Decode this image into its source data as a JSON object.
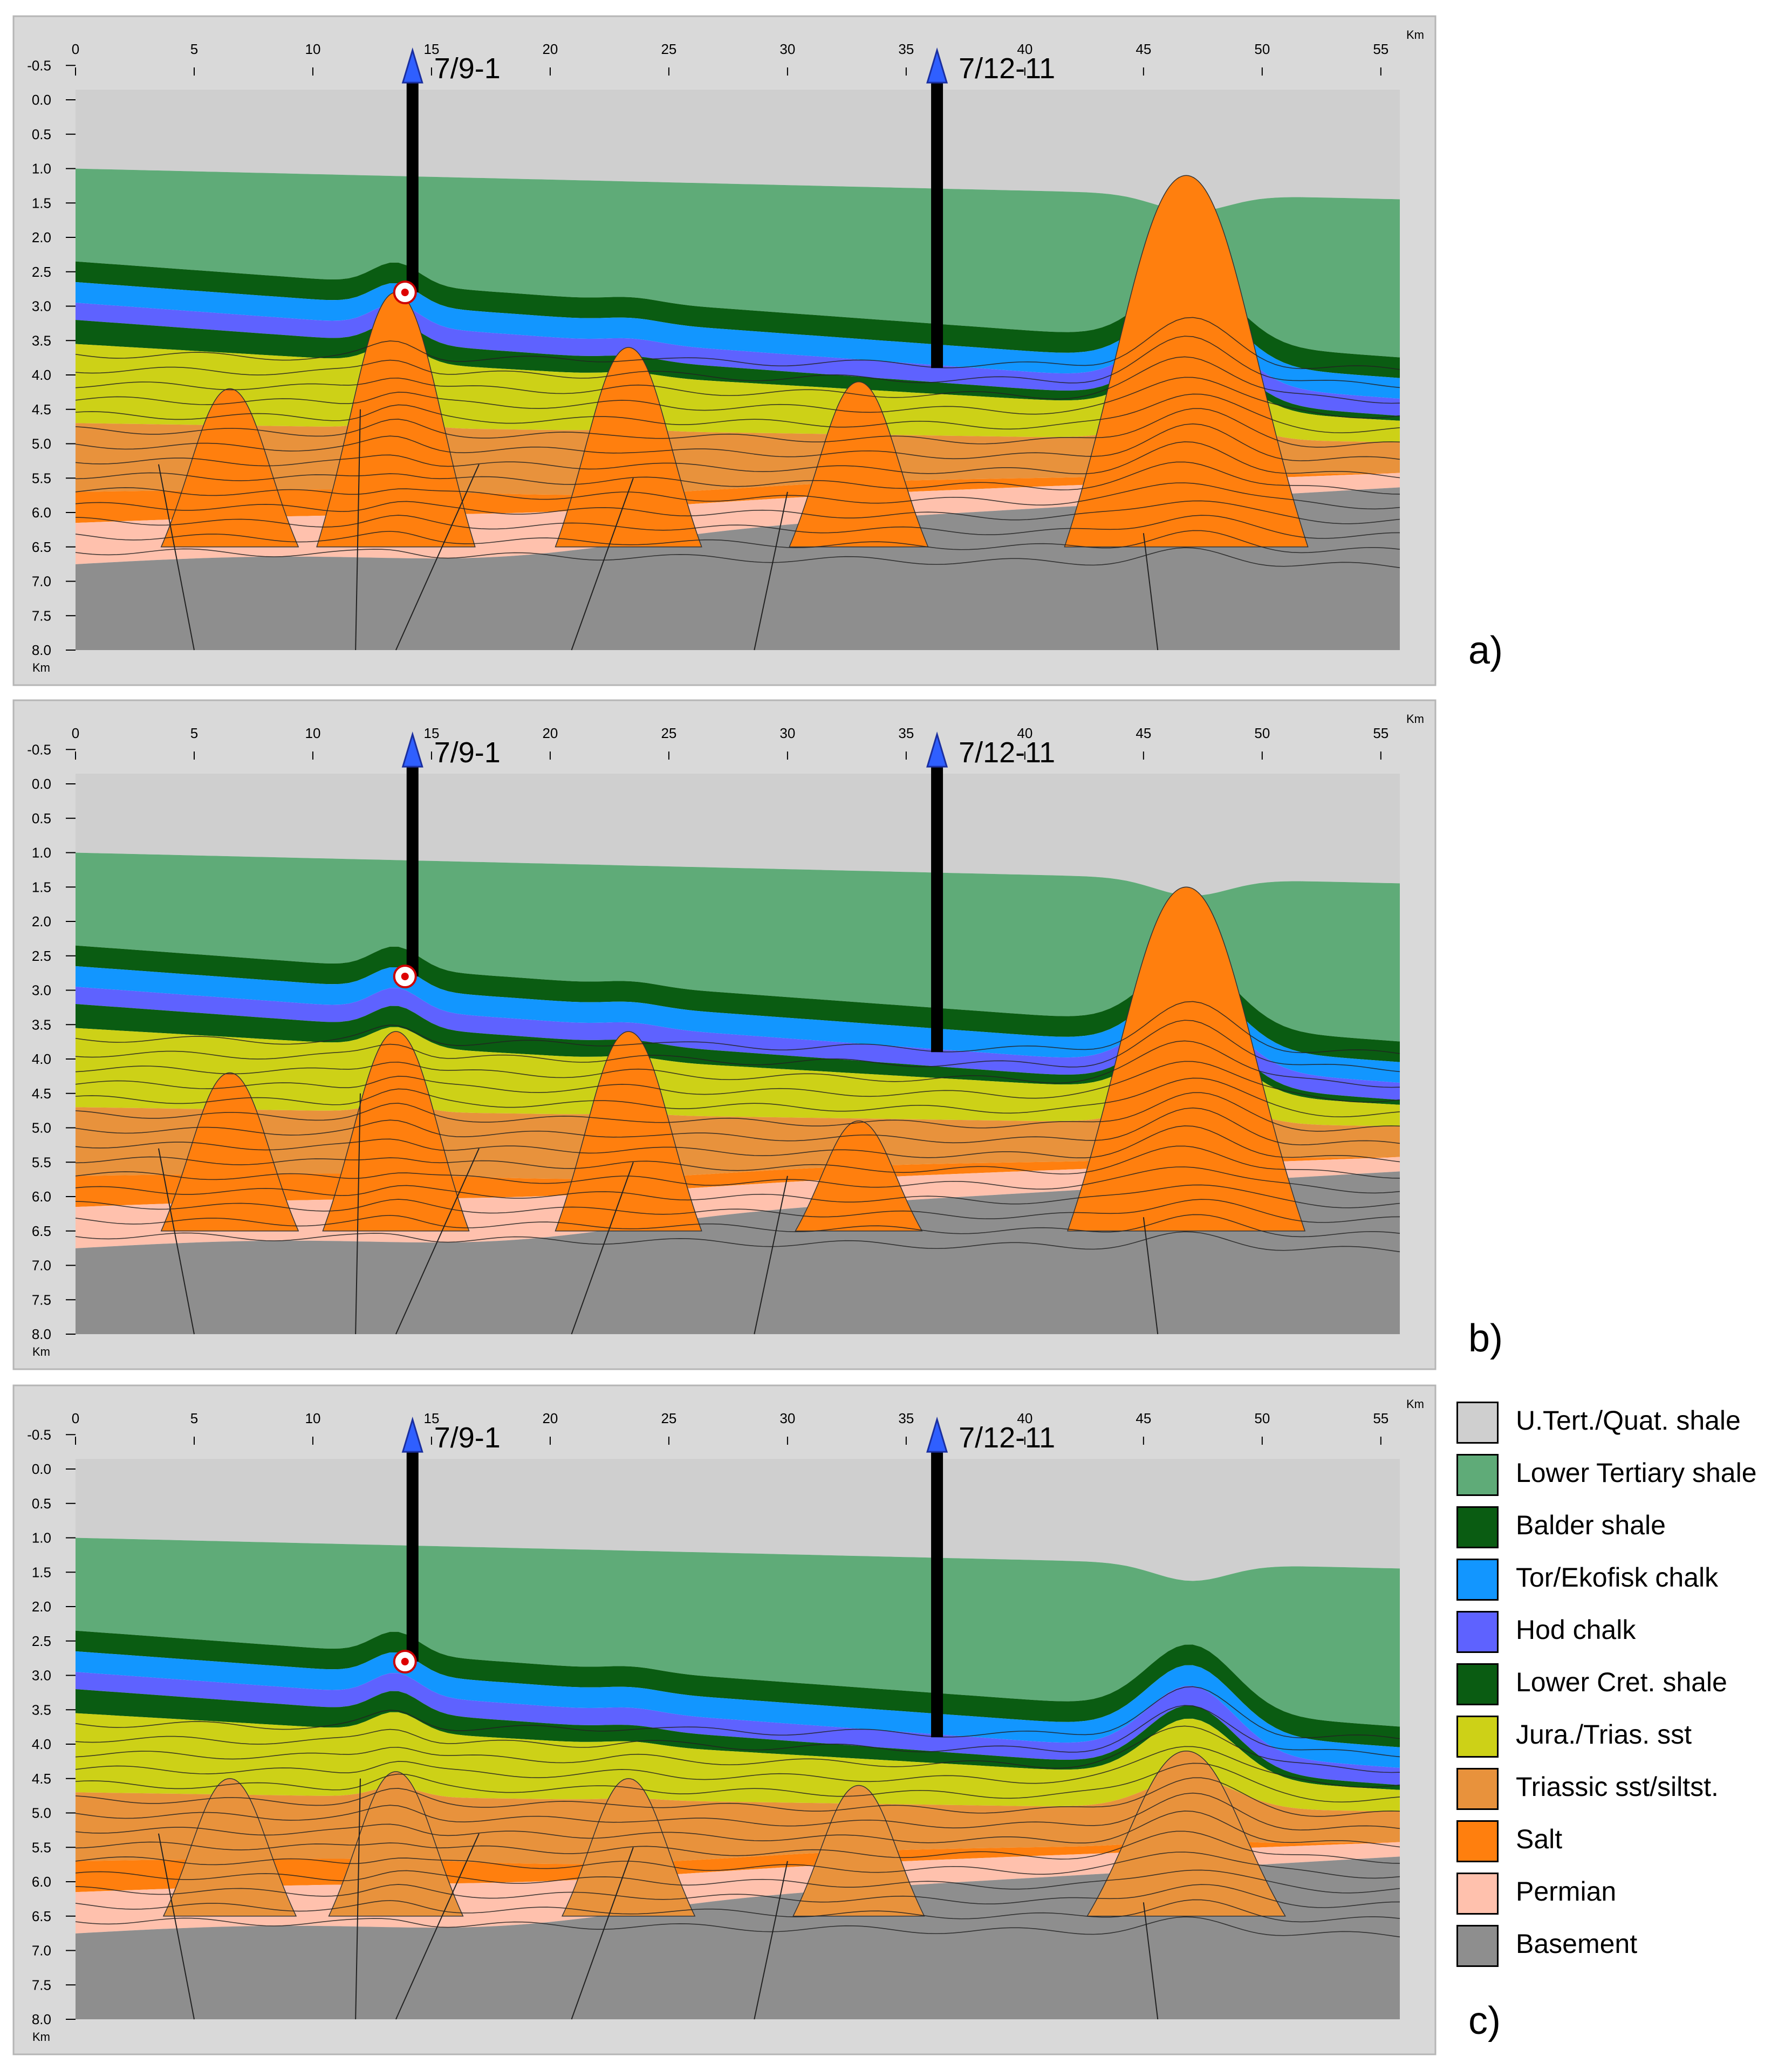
{
  "axis": {
    "unit_x": "Km",
    "unit_y": "Km",
    "x_ticks": [
      "0",
      "5",
      "10",
      "15",
      "20",
      "25",
      "30",
      "35",
      "40",
      "45",
      "50",
      "55"
    ],
    "y_ticks": [
      "-0.5",
      "0.0",
      "0.5",
      "1.0",
      "1.5",
      "2.0",
      "2.5",
      "3.0",
      "3.5",
      "4.0",
      "4.5",
      "5.0",
      "5.5",
      "6.0",
      "6.5",
      "7.0",
      "7.5",
      "8.0"
    ]
  },
  "wells": [
    {
      "name": "7/9-1",
      "x_km": 14.2,
      "bottom_depth_km": 2.8
    },
    {
      "name": "7/12-11",
      "x_km": 36.3,
      "bottom_depth_km": 3.9
    }
  ],
  "panels": [
    {
      "label": "a)",
      "diapirs": [
        {
          "x_km": 6.5,
          "top_km": 4.2,
          "salt": true
        },
        {
          "x_km": 13.5,
          "top_km": 2.8,
          "salt": true
        },
        {
          "x_km": 23.3,
          "top_km": 3.6,
          "salt": true
        },
        {
          "x_km": 33.0,
          "top_km": 4.1,
          "salt": true
        },
        {
          "x_km": 46.8,
          "top_km": 1.1,
          "salt": true
        }
      ]
    },
    {
      "label": "b)",
      "diapirs": [
        {
          "x_km": 6.5,
          "top_km": 4.2,
          "salt": true
        },
        {
          "x_km": 13.5,
          "top_km": 3.6,
          "salt": true
        },
        {
          "x_km": 23.3,
          "top_km": 3.6,
          "salt": true
        },
        {
          "x_km": 33.0,
          "top_km": 4.9,
          "salt": true
        },
        {
          "x_km": 46.8,
          "top_km": 1.5,
          "salt": true
        }
      ]
    },
    {
      "label": "c)",
      "diapirs": [
        {
          "x_km": 6.5,
          "top_km": 4.5,
          "salt": false
        },
        {
          "x_km": 13.5,
          "top_km": 4.4,
          "salt": false
        },
        {
          "x_km": 23.3,
          "top_km": 4.5,
          "salt": false
        },
        {
          "x_km": 33.0,
          "top_km": 4.6,
          "salt": false
        },
        {
          "x_km": 46.8,
          "top_km": 4.1,
          "salt": false
        }
      ]
    }
  ],
  "legend": [
    {
      "label": "U.Tert./Quat. shale",
      "color": "#cfcfcf"
    },
    {
      "label": "Lower Tertiary shale",
      "color": "#5fab78"
    },
    {
      "label": "Balder shale",
      "color": "#0a5c12"
    },
    {
      "label": "Tor/Ekofisk chalk",
      "color": "#1296ff"
    },
    {
      "label": "Hod chalk",
      "color": "#5e62ff"
    },
    {
      "label": "Lower Cret. shale",
      "color": "#0a5c12"
    },
    {
      "label": "Jura./Trias. sst",
      "color": "#cdd117"
    },
    {
      "label": "Triassic sst/siltst.",
      "color": "#e8923c"
    },
    {
      "label": "Salt",
      "color": "#ff7f0e"
    },
    {
      "label": "Permian",
      "color": "#ffc1ad"
    },
    {
      "label": "Basement",
      "color": "#8e8e8e"
    }
  ]
}
